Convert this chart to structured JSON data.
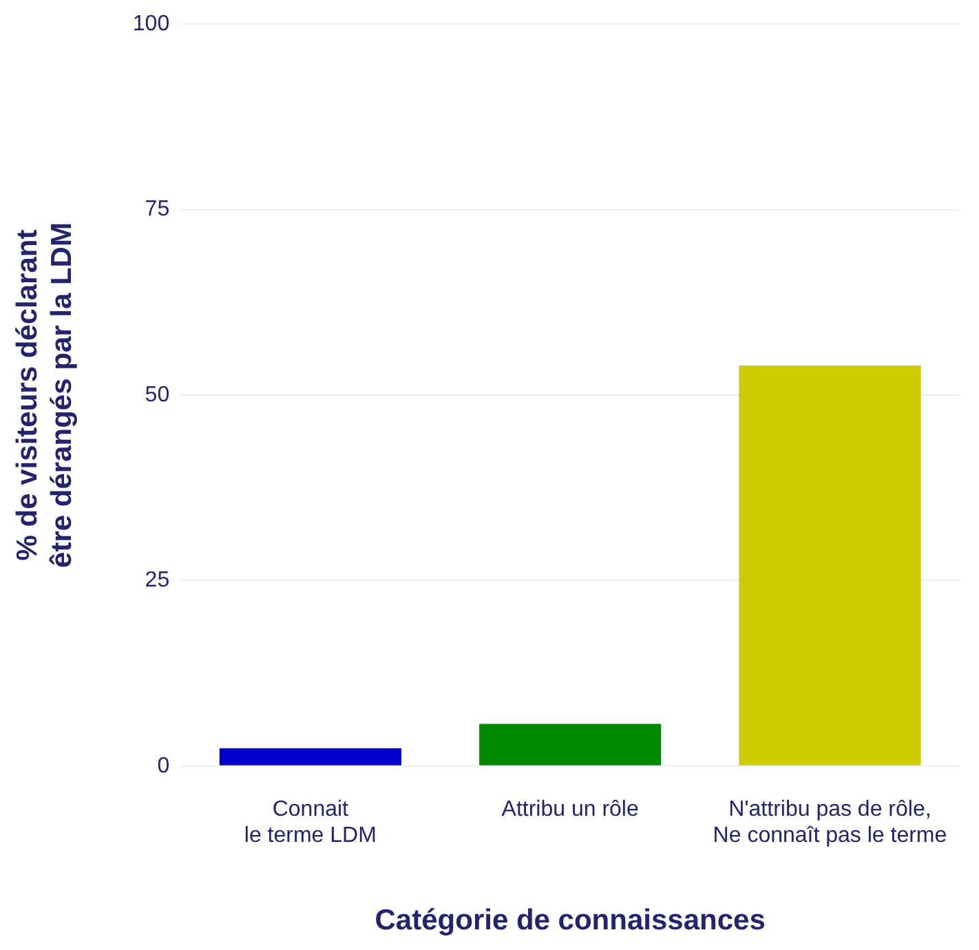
{
  "chart_data": {
    "type": "bar",
    "xlabel": "Catégorie de connaissances",
    "ylabel": "% de visiteurs déclarant\nêtre dérangés par la LDM",
    "categories": [
      "Connait\nle terme LDM",
      "Attribu un rôle",
      "N'attribu pas de rôle,\nNe connaît pas le terme"
    ],
    "values": [
      2.4,
      5.7,
      54
    ],
    "colors": [
      "#0000cc",
      "#008800",
      "#cccc00"
    ],
    "ylim": [
      0,
      100
    ],
    "yticks": [
      0,
      25,
      50,
      75,
      100
    ],
    "grid": "y",
    "legend": false
  }
}
